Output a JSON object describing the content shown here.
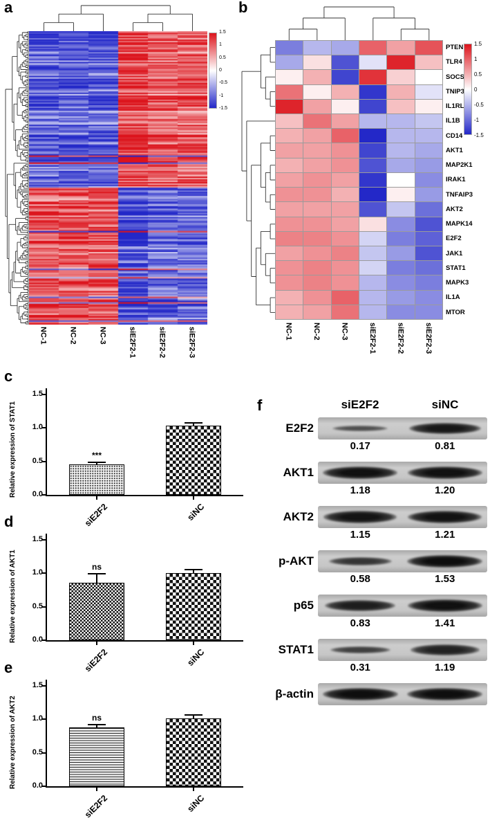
{
  "panel_labels": {
    "a": "a",
    "b": "b",
    "c": "c",
    "d": "d",
    "e": "e",
    "f": "f"
  },
  "samples": [
    "NC-1",
    "NC-2",
    "NC-3",
    "siE2F2-1",
    "siE2F2-2",
    "siE2F2-3"
  ],
  "colorbar": {
    "ticks": [
      "1.5",
      "1",
      "0.5",
      "0",
      "-0.5",
      "-1",
      "-1.5"
    ],
    "max_color": "#dc141c",
    "min_color": "#2328c8"
  },
  "chart_data": [
    {
      "panel": "a",
      "type": "heatmap",
      "columns": [
        "NC-1",
        "NC-2",
        "NC-3",
        "siE2F2-1",
        "siE2F2-2",
        "siE2F2-3"
      ],
      "rows_label": "differentially expressed genes (dense, individual rows unlabeled)",
      "scale": [
        -1.5,
        1.5
      ],
      "pattern": "upper cluster: NC samples blue (low) and siE2F2 samples red (high); lower cluster reversed",
      "generator": {
        "rows": 210,
        "seed": 13,
        "split": 0.53
      },
      "col_tree": [
        [
          [
            0,
            1
          ],
          2
        ],
        [
          [
            3,
            4
          ],
          5
        ]
      ]
    },
    {
      "panel": "b",
      "type": "heatmap",
      "columns": [
        "NC-1",
        "NC-2",
        "NC-3",
        "siE2F2-1",
        "siE2F2-2",
        "siE2F2-3"
      ],
      "rows": [
        "PTEN",
        "TLR4",
        "SOCS1",
        "TNIP3",
        "IL1RL1",
        "IL1B",
        "CD14",
        "AKT1",
        "MAP2K1",
        "IRAK1",
        "TNFAIP3",
        "AKT2",
        "MAPK14",
        "E2F2",
        "JAK1",
        "STAT1",
        "MAPK3",
        "IL1A",
        "MTOR"
      ],
      "scale": [
        -1.5,
        1.5
      ],
      "values": [
        [
          -0.9,
          -0.5,
          -0.6,
          1.0,
          0.6,
          1.1
        ],
        [
          -0.6,
          0.2,
          -1.2,
          -0.2,
          1.4,
          0.4
        ],
        [
          0.1,
          0.5,
          -1.3,
          1.3,
          0.3,
          0.0
        ],
        [
          0.9,
          0.1,
          0.5,
          -1.4,
          0.5,
          -0.2
        ],
        [
          1.4,
          0.6,
          0.1,
          -1.3,
          0.4,
          0.1
        ],
        [
          0.4,
          0.9,
          0.6,
          -0.5,
          -0.5,
          -0.4
        ],
        [
          0.5,
          0.6,
          1.0,
          -1.5,
          -0.5,
          -0.5
        ],
        [
          0.6,
          0.6,
          0.7,
          -1.3,
          -0.5,
          -0.6
        ],
        [
          0.5,
          0.6,
          0.7,
          -1.2,
          -0.6,
          -0.7
        ],
        [
          0.6,
          0.7,
          0.6,
          -1.4,
          0.0,
          -0.8
        ],
        [
          0.7,
          0.7,
          0.5,
          -1.5,
          0.1,
          -0.7
        ],
        [
          0.6,
          0.6,
          0.6,
          -1.2,
          -0.4,
          -1.0
        ],
        [
          0.7,
          0.7,
          0.6,
          0.2,
          -0.8,
          -1.2
        ],
        [
          0.8,
          0.8,
          0.7,
          -0.3,
          -0.9,
          -1.1
        ],
        [
          0.6,
          0.7,
          0.8,
          -0.4,
          -0.7,
          -1.2
        ],
        [
          0.7,
          0.8,
          0.7,
          -0.3,
          -0.9,
          -1.0
        ],
        [
          0.7,
          0.8,
          0.7,
          -0.5,
          -0.8,
          -0.9
        ],
        [
          0.5,
          0.7,
          1.0,
          -0.5,
          -0.7,
          -0.8
        ],
        [
          0.5,
          0.6,
          0.9,
          -0.5,
          -0.8,
          -0.8
        ]
      ],
      "col_tree": [
        [
          [
            0,
            1
          ],
          2
        ],
        [
          3,
          [
            4,
            5
          ]
        ]
      ],
      "row_tree": [
        [
          [
            0,
            1
          ],
          [
            2,
            [
              3,
              4
            ]
          ]
        ],
        [
          5,
          [
            [
              [
                6,
                7
              ],
              [
                [
                  8,
                  9
                ],
                [
                  10,
                  11
                ]
              ]
            ],
            [
              [
                [
                  12,
                  13
                ],
                [
                  14,
                  [
                    15,
                    16
                  ]
                ]
              ],
              [
                17,
                18
              ]
            ]
          ]
        ]
      ]
    },
    {
      "panel": "c",
      "type": "bar",
      "ylabel": "Relative expression of STAT1",
      "categories": [
        "siE2F2",
        "siNC"
      ],
      "values": [
        0.45,
        1.03
      ],
      "errors": [
        0.04,
        0.05
      ],
      "significance": "***",
      "ylim": [
        0,
        1.5
      ],
      "yticks": [
        0,
        0.5,
        1.0,
        1.5
      ],
      "patterns": [
        "dots",
        "checker"
      ]
    },
    {
      "panel": "d",
      "type": "bar",
      "ylabel": "Relative expression of AKT1",
      "categories": [
        "siE2F2",
        "siNC"
      ],
      "values": [
        0.86,
        1.0
      ],
      "errors": [
        0.13,
        0.05
      ],
      "significance": "ns",
      "ylim": [
        0,
        1.5
      ],
      "yticks": [
        0,
        0.5,
        1.0,
        1.5
      ],
      "patterns": [
        "fine-checker",
        "checker"
      ]
    },
    {
      "panel": "e",
      "type": "bar",
      "ylabel": "Relative expression of AKT2",
      "categories": [
        "siE2F2",
        "siNC"
      ],
      "values": [
        0.88,
        1.01
      ],
      "errors": [
        0.04,
        0.05
      ],
      "significance": "ns",
      "ylim": [
        0,
        1.5
      ],
      "yticks": [
        0,
        0.5,
        1.0,
        1.5
      ],
      "patterns": [
        "hlines",
        "checker"
      ]
    },
    {
      "panel": "f",
      "type": "table",
      "columns": [
        "siE2F2",
        "siNC"
      ],
      "rows": [
        {
          "protein": "E2F2",
          "values": [
            "0.17",
            "0.81"
          ],
          "band_intensity": [
            0.28,
            0.85
          ]
        },
        {
          "protein": "AKT1",
          "values": [
            "1.18",
            "1.20"
          ],
          "band_intensity": [
            0.95,
            0.95
          ]
        },
        {
          "protein": "AKT2",
          "values": [
            "1.15",
            "1.21"
          ],
          "band_intensity": [
            0.9,
            0.92
          ]
        },
        {
          "protein": "p-AKT",
          "values": [
            "0.58",
            "1.53"
          ],
          "band_intensity": [
            0.55,
            0.98
          ]
        },
        {
          "protein": "p65",
          "values": [
            "0.83",
            "1.41"
          ],
          "band_intensity": [
            0.8,
            0.95
          ]
        },
        {
          "protein": "STAT1",
          "values": [
            "0.31",
            "1.19"
          ],
          "band_intensity": [
            0.45,
            0.75
          ]
        },
        {
          "protein": "β-actin",
          "values": null,
          "band_intensity": [
            0.97,
            0.97
          ]
        }
      ]
    }
  ]
}
